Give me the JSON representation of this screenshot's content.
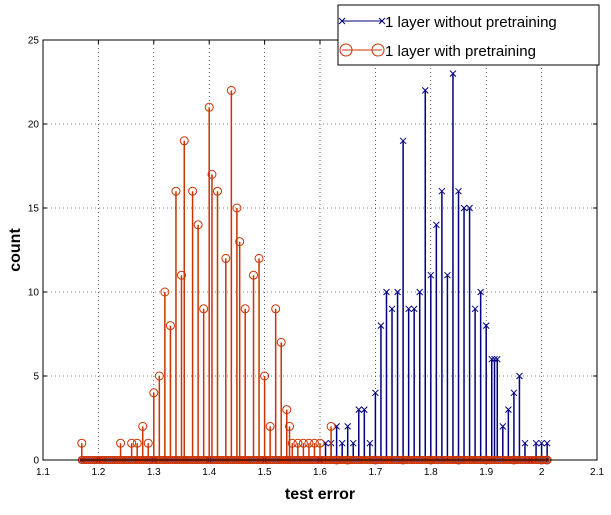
{
  "chart_data": {
    "type": "stem",
    "title": "",
    "xlabel": "test error",
    "ylabel": "count",
    "xlim": [
      1.1,
      2.1
    ],
    "ylim": [
      0,
      25
    ],
    "xticks": [
      "1.1",
      "1.2",
      "1.3",
      "1.4",
      "1.5",
      "1.6",
      "1.7",
      "1.8",
      "1.9",
      "2",
      "2.1"
    ],
    "yticks": [
      "0",
      "5",
      "10",
      "15",
      "20",
      "25"
    ],
    "grid": true,
    "legend_position": "top-right",
    "series": [
      {
        "name": "1 layer without pretraining",
        "color": "#000080",
        "marker": "x",
        "x": [
          1.17,
          1.2,
          1.25,
          1.3,
          1.35,
          1.4,
          1.45,
          1.5,
          1.55,
          1.6,
          1.61,
          1.62,
          1.63,
          1.64,
          1.65,
          1.66,
          1.67,
          1.68,
          1.69,
          1.7,
          1.71,
          1.72,
          1.73,
          1.74,
          1.75,
          1.76,
          1.77,
          1.78,
          1.79,
          1.8,
          1.81,
          1.82,
          1.83,
          1.84,
          1.85,
          1.86,
          1.87,
          1.88,
          1.89,
          1.9,
          1.91,
          1.915,
          1.92,
          1.93,
          1.94,
          1.95,
          1.96,
          1.97,
          1.98,
          1.99,
          2,
          2.01
        ],
        "y": [
          0,
          0,
          0,
          0,
          0,
          0,
          0,
          0,
          0,
          0,
          1,
          1,
          2,
          1,
          2,
          1,
          3,
          3,
          1,
          4,
          8,
          10,
          9,
          10,
          19,
          9,
          9,
          10,
          22,
          11,
          14,
          16,
          11,
          23,
          16,
          15,
          15,
          9,
          10,
          8,
          6,
          6,
          6,
          2,
          3,
          4,
          5,
          1,
          0,
          1,
          1,
          1
        ]
      },
      {
        "name": "1 layer with pretraining",
        "color": "#cc3300",
        "marker": "o",
        "x": [
          1.17,
          1.24,
          1.26,
          1.27,
          1.28,
          1.29,
          1.3,
          1.31,
          1.32,
          1.33,
          1.34,
          1.35,
          1.355,
          1.37,
          1.38,
          1.39,
          1.4,
          1.405,
          1.415,
          1.43,
          1.44,
          1.45,
          1.455,
          1.465,
          1.48,
          1.49,
          1.5,
          1.51,
          1.52,
          1.53,
          1.54,
          1.545,
          1.55,
          1.56,
          1.57,
          1.58,
          1.59,
          1.6,
          1.62,
          1.63,
          1.65,
          1.7,
          1.75,
          1.8,
          1.85,
          1.9,
          1.95,
          2,
          2.01
        ],
        "y": [
          1,
          1,
          1,
          1,
          2,
          1,
          4,
          5,
          10,
          8,
          16,
          11,
          19,
          16,
          14,
          9,
          21,
          17,
          16,
          12,
          22,
          15,
          13,
          9,
          11,
          12,
          5,
          2,
          9,
          7,
          3,
          2,
          1,
          1,
          1,
          1,
          1,
          1,
          2,
          0,
          0,
          0,
          0,
          0,
          0,
          0,
          0,
          0,
          0
        ]
      }
    ]
  }
}
